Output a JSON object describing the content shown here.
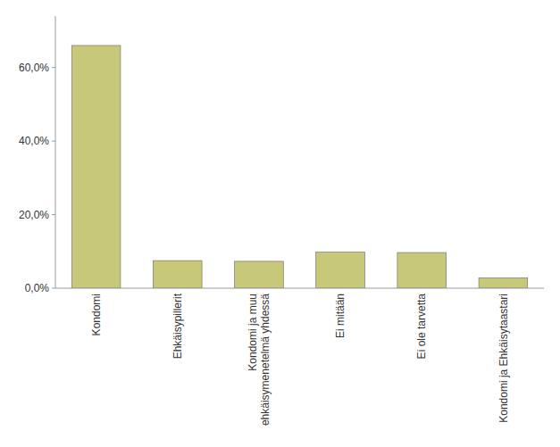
{
  "chart_data": {
    "type": "bar",
    "categories": [
      "Kondomi",
      "Ehkäisypillerit",
      "Kondomi ja muu\nehkäisymenetelmä yhdessä",
      "Ei mitään",
      "Ei ole tarvetta",
      "Kondomi ja Ehkäisytaastari"
    ],
    "values": [
      0.66,
      0.075,
      0.073,
      0.098,
      0.097,
      0.028
    ],
    "color": "#c8c87a",
    "ylim": [
      0,
      0.74
    ],
    "yticks": [
      {
        "value": 0.0,
        "label": "0,0%"
      },
      {
        "value": 0.2,
        "label": "20,0%"
      },
      {
        "value": 0.4,
        "label": "40,0%"
      },
      {
        "value": 0.6,
        "label": "60,0%"
      }
    ],
    "grid": false
  }
}
